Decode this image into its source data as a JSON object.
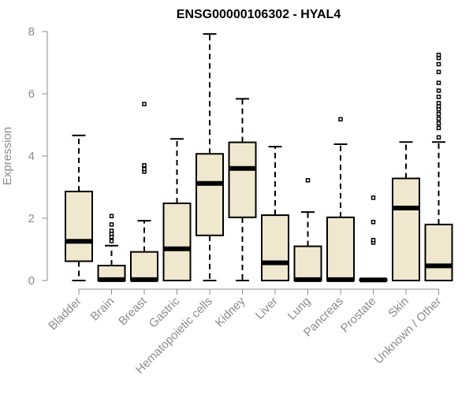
{
  "chart_data": {
    "type": "boxplot",
    "title": "ENSG00000106302 - HYAL4",
    "xlabel": "",
    "ylabel": "Expression",
    "ylim": [
      0,
      8
    ],
    "yticks": [
      0,
      2,
      4,
      6,
      8
    ],
    "box_fill": "#efe8cf",
    "categories": [
      "Bladder",
      "Brain",
      "Breast",
      "Gastric",
      "Hematopoietic cells",
      "Kidney",
      "Liver",
      "Lung",
      "Pancreas",
      "Prostate",
      "Skin",
      "Unknown / Other"
    ],
    "boxes": [
      {
        "name": "Bladder",
        "min": 0.0,
        "q1": 0.62,
        "median": 1.26,
        "q3": 2.86,
        "max": 4.66,
        "outliers": []
      },
      {
        "name": "Brain",
        "min": 0.0,
        "q1": 0.0,
        "median": 0.03,
        "q3": 0.48,
        "max": 1.12,
        "outliers": [
          1.27,
          1.4,
          1.5,
          1.6,
          1.8,
          2.07
        ]
      },
      {
        "name": "Breast",
        "min": 0.0,
        "q1": 0.0,
        "median": 0.03,
        "q3": 0.92,
        "max": 1.92,
        "outliers": [
          3.5,
          3.58,
          3.7,
          5.67
        ]
      },
      {
        "name": "Gastric",
        "min": 0.0,
        "q1": 0.0,
        "median": 1.02,
        "q3": 2.48,
        "max": 4.55,
        "outliers": []
      },
      {
        "name": "Hematopoietic cells",
        "min": 0.0,
        "q1": 1.45,
        "median": 3.12,
        "q3": 4.07,
        "max": 7.92,
        "outliers": []
      },
      {
        "name": "Kidney",
        "min": 0.0,
        "q1": 2.03,
        "median": 3.6,
        "q3": 4.44,
        "max": 5.84,
        "outliers": []
      },
      {
        "name": "Liver",
        "min": 0.0,
        "q1": 0.0,
        "median": 0.57,
        "q3": 2.1,
        "max": 4.3,
        "outliers": []
      },
      {
        "name": "Lung",
        "min": 0.0,
        "q1": 0.0,
        "median": 0.03,
        "q3": 1.1,
        "max": 2.2,
        "outliers": [
          3.22
        ]
      },
      {
        "name": "Pancreas",
        "min": 0.0,
        "q1": 0.0,
        "median": 0.03,
        "q3": 2.03,
        "max": 4.38,
        "outliers": [
          5.18
        ]
      },
      {
        "name": "Prostate",
        "min": 0.0,
        "q1": 0.0,
        "median": 0.02,
        "q3": 0.04,
        "max": 0.04,
        "outliers": [
          1.22,
          1.3,
          1.88,
          2.66
        ]
      },
      {
        "name": "Skin",
        "min": 0.0,
        "q1": 0.0,
        "median": 2.33,
        "q3": 3.28,
        "max": 4.45,
        "outliers": []
      },
      {
        "name": "Unknown / Other",
        "min": 0.0,
        "q1": 0.0,
        "median": 0.47,
        "q3": 1.8,
        "max": 4.45,
        "outliers": [
          4.6,
          4.9,
          5.05,
          5.2,
          5.35,
          5.5,
          5.6,
          5.7,
          5.9,
          6.1,
          6.35,
          6.7,
          6.95,
          7.15,
          7.25
        ]
      }
    ]
  }
}
